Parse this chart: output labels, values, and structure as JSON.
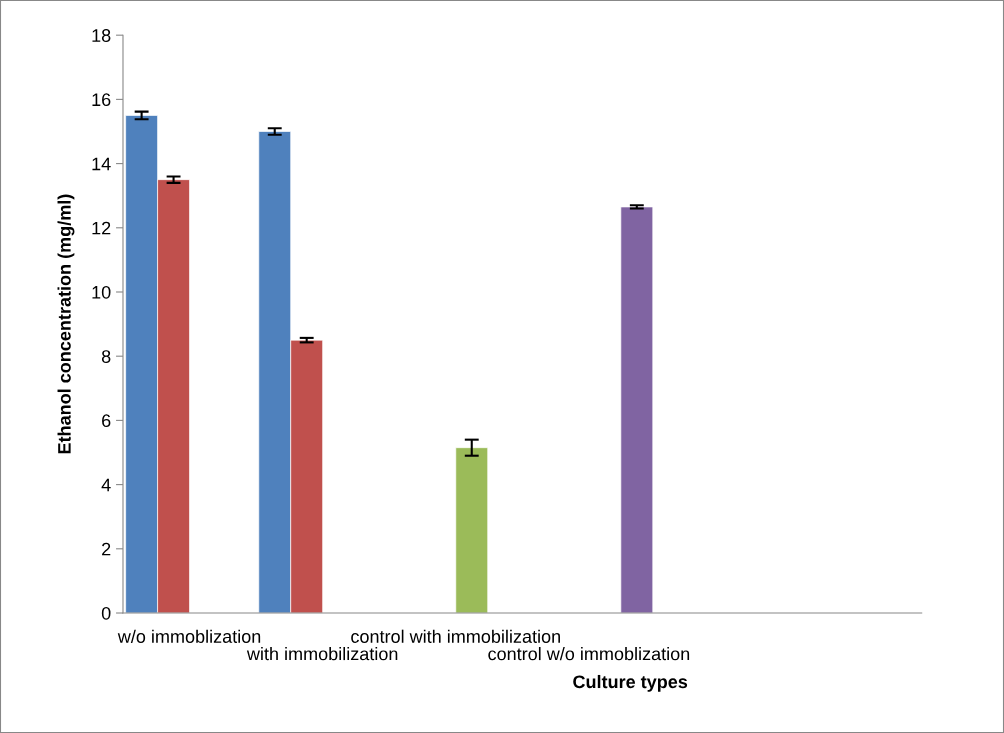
{
  "chart_data": {
    "type": "bar",
    "xlabel": "Culture types",
    "ylabel": "Ethanol concentration (mg/ml)",
    "categories": [
      "w/o immoblization",
      "with immobilization",
      "control with immobilization",
      "control w/o immoblization",
      null,
      null
    ],
    "series": [
      {
        "color": "#4f81bd",
        "values": [
          15.5,
          15.0,
          null,
          null,
          null,
          null
        ],
        "errors": [
          0.12,
          0.1,
          null,
          null,
          null,
          null
        ]
      },
      {
        "color": "#c0504d",
        "values": [
          13.5,
          8.5,
          null,
          null,
          null,
          null
        ],
        "errors": [
          0.1,
          0.07,
          null,
          null,
          null,
          null
        ]
      },
      {
        "color": "#9bbb59",
        "values": [
          null,
          null,
          5.15,
          null,
          null,
          null
        ],
        "errors": [
          null,
          null,
          0.25,
          null,
          null,
          null
        ]
      },
      {
        "color": "#8064a2",
        "values": [
          null,
          null,
          null,
          12.65,
          null,
          null
        ],
        "errors": [
          null,
          null,
          null,
          0.05,
          null,
          null
        ]
      }
    ],
    "ylim": [
      0,
      18
    ],
    "yticks": [
      0,
      2,
      4,
      6,
      8,
      10,
      12,
      14,
      16,
      18
    ],
    "grid": false,
    "legend": false
  }
}
